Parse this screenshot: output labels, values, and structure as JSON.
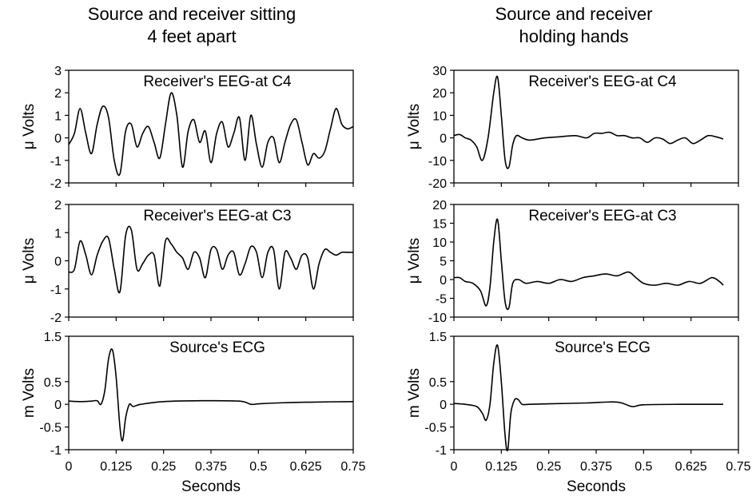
{
  "columns": [
    {
      "title": "Source and receiver sitting\n4 feet apart"
    },
    {
      "title": "Source and receiver\nholding hands"
    }
  ],
  "chart_data": [
    {
      "type": "line",
      "column": 0,
      "row": 0,
      "annotation": "Receiver's EEG-at C4",
      "ylabel": "μ Volts",
      "xlim": [
        0,
        0.75
      ],
      "ylim": [
        -2,
        3
      ],
      "yticks": [
        -2,
        -1,
        0,
        1,
        2,
        3
      ],
      "ytick_labels": [
        "-2",
        "-1",
        "0",
        "1",
        "2",
        "3"
      ],
      "xticks": [
        0,
        0.125,
        0.25,
        0.375,
        0.5,
        0.625,
        0.75
      ],
      "xtick_labels": [],
      "series": [
        {
          "x": [
            0,
            0.015,
            0.03,
            0.045,
            0.06,
            0.075,
            0.09,
            0.105,
            0.12,
            0.135,
            0.15,
            0.165,
            0.18,
            0.195,
            0.21,
            0.225,
            0.24,
            0.255,
            0.27,
            0.285,
            0.3,
            0.315,
            0.33,
            0.345,
            0.36,
            0.375,
            0.39,
            0.405,
            0.42,
            0.435,
            0.45,
            0.465,
            0.48,
            0.495,
            0.51,
            0.525,
            0.54,
            0.555,
            0.57,
            0.585,
            0.6,
            0.615,
            0.63,
            0.645,
            0.66,
            0.675,
            0.69,
            0.705,
            0.72,
            0.735,
            0.75
          ],
          "values": [
            -0.3,
            0.2,
            1.3,
            0.2,
            -0.7,
            0.6,
            1.4,
            0.9,
            -1.0,
            -1.6,
            0.3,
            0.6,
            -0.4,
            0.2,
            0.5,
            -0.2,
            -0.9,
            0.6,
            2.0,
            1.0,
            -1.3,
            0.3,
            0.8,
            -0.2,
            0.3,
            -1.1,
            0.2,
            0.7,
            -0.4,
            0.2,
            0.9,
            -1.0,
            1.0,
            -0.3,
            -1.3,
            -0.2,
            0.0,
            -1.1,
            -0.2,
            0.6,
            0.8,
            -0.2,
            -1.2,
            -0.7,
            -0.9,
            -0.6,
            0.4,
            1.3,
            0.6,
            0.4,
            0.5
          ]
        }
      ]
    },
    {
      "type": "line",
      "column": 0,
      "row": 1,
      "annotation": "Receiver's EEG-at C3",
      "ylabel": "μ Volts",
      "xlim": [
        0,
        0.75
      ],
      "ylim": [
        -2,
        2
      ],
      "yticks": [
        -2,
        -1,
        0,
        1,
        2
      ],
      "ytick_labels": [
        "-2",
        "-1",
        "0",
        "1",
        "2"
      ],
      "xticks": [
        0,
        0.125,
        0.25,
        0.375,
        0.5,
        0.625,
        0.75
      ],
      "xtick_labels": [],
      "series": [
        {
          "x": [
            0,
            0.015,
            0.03,
            0.045,
            0.06,
            0.075,
            0.09,
            0.105,
            0.12,
            0.135,
            0.15,
            0.165,
            0.18,
            0.195,
            0.21,
            0.225,
            0.24,
            0.255,
            0.27,
            0.285,
            0.3,
            0.315,
            0.33,
            0.345,
            0.36,
            0.375,
            0.39,
            0.405,
            0.42,
            0.435,
            0.45,
            0.465,
            0.48,
            0.495,
            0.51,
            0.525,
            0.54,
            0.555,
            0.57,
            0.585,
            0.6,
            0.615,
            0.63,
            0.645,
            0.66,
            0.675,
            0.69,
            0.705,
            0.72,
            0.735,
            0.75
          ],
          "values": [
            -0.4,
            -0.3,
            0.7,
            0.2,
            -0.5,
            0.2,
            0.7,
            0.8,
            -0.3,
            -1.1,
            0.9,
            1.1,
            -0.3,
            -0.1,
            0.2,
            0.2,
            -0.9,
            0.7,
            0.6,
            0.3,
            0.1,
            -0.3,
            0.3,
            0.1,
            -0.6,
            0.4,
            0.4,
            -0.3,
            0.2,
            0.3,
            -0.5,
            -0.1,
            0.5,
            0.3,
            -0.6,
            0.3,
            0.4,
            -1.0,
            0.3,
            0.1,
            -0.3,
            0.2,
            0.1,
            -1.0,
            -0.1,
            0.4,
            0.3,
            0.2,
            0.3,
            0.3,
            0.3
          ]
        }
      ]
    },
    {
      "type": "line",
      "column": 0,
      "row": 2,
      "annotation": "Source's ECG",
      "ylabel": "m Volts",
      "xlim": [
        0,
        0.75
      ],
      "ylim": [
        -1,
        1.5
      ],
      "yticks": [
        -1,
        -0.5,
        0,
        0.5,
        1.5
      ],
      "ytick_labels": [
        "-1",
        "-0.5",
        "0",
        "0.5",
        "1.5"
      ],
      "xticks": [
        0,
        0.125,
        0.25,
        0.375,
        0.5,
        0.625,
        0.75
      ],
      "xtick_labels": [
        "0",
        "0.125",
        "0.25",
        "0.375",
        "0.5",
        "0.625",
        "0.75"
      ],
      "xlabel": "Seconds",
      "series": [
        {
          "x": [
            0,
            0.03,
            0.06,
            0.075,
            0.085,
            0.095,
            0.105,
            0.115,
            0.125,
            0.135,
            0.142,
            0.15,
            0.16,
            0.17,
            0.19,
            0.25,
            0.35,
            0.45,
            0.48,
            0.5,
            0.55,
            0.65,
            0.75
          ],
          "values": [
            0.07,
            0.06,
            0.07,
            0.08,
            0.0,
            0.3,
            1.0,
            1.2,
            0.6,
            -0.5,
            -0.8,
            -0.3,
            0.0,
            -0.05,
            0.0,
            0.06,
            0.08,
            0.07,
            0.0,
            0.01,
            0.03,
            0.05,
            0.06
          ]
        }
      ]
    },
    {
      "type": "line",
      "column": 1,
      "row": 0,
      "annotation": "Receiver's EEG-at C4",
      "ylabel": "μ Volts",
      "xlim": [
        0,
        0.75
      ],
      "ylim": [
        -20,
        30
      ],
      "yticks": [
        -20,
        -10,
        0,
        10,
        20,
        30
      ],
      "ytick_labels": [
        "-20",
        "-10",
        "0",
        "10",
        "20",
        "30"
      ],
      "xticks": [
        0,
        0.125,
        0.25,
        0.375,
        0.5,
        0.625,
        0.75
      ],
      "xtick_labels": [],
      "series": [
        {
          "x": [
            0,
            0.015,
            0.03,
            0.045,
            0.06,
            0.075,
            0.09,
            0.105,
            0.115,
            0.125,
            0.135,
            0.145,
            0.155,
            0.165,
            0.18,
            0.2,
            0.24,
            0.28,
            0.32,
            0.35,
            0.37,
            0.39,
            0.41,
            0.43,
            0.45,
            0.47,
            0.49,
            0.51,
            0.53,
            0.55,
            0.57,
            0.59,
            0.61,
            0.63,
            0.65,
            0.67,
            0.69,
            0.71
          ],
          "values": [
            1,
            1.5,
            0,
            -1,
            -4,
            -10,
            0,
            20,
            27,
            10,
            -10,
            -13,
            -3,
            1,
            0,
            -1,
            0,
            0.5,
            1,
            0,
            2,
            2,
            2.5,
            1,
            1,
            0,
            0,
            -2,
            0,
            -0.5,
            -2.5,
            -1,
            0,
            -2.5,
            -1,
            1,
            0.5,
            -0.5
          ]
        }
      ]
    },
    {
      "type": "line",
      "column": 1,
      "row": 1,
      "annotation": "Receiver's EEG-at C3",
      "ylabel": "μ Volts",
      "xlim": [
        0,
        0.75
      ],
      "ylim": [
        -10,
        20
      ],
      "yticks": [
        -10,
        -5,
        0,
        5,
        10,
        15,
        20
      ],
      "ytick_labels": [
        "-10",
        "-5",
        "0",
        "5",
        "10",
        "15",
        "20"
      ],
      "xticks": [
        0,
        0.125,
        0.25,
        0.375,
        0.5,
        0.625,
        0.75
      ],
      "xtick_labels": [],
      "series": [
        {
          "x": [
            0,
            0.015,
            0.03,
            0.05,
            0.07,
            0.085,
            0.095,
            0.105,
            0.115,
            0.125,
            0.135,
            0.145,
            0.155,
            0.17,
            0.19,
            0.22,
            0.25,
            0.28,
            0.31,
            0.34,
            0.37,
            0.4,
            0.43,
            0.46,
            0.48,
            0.5,
            0.53,
            0.56,
            0.59,
            0.62,
            0.65,
            0.68,
            0.7,
            0.71
          ],
          "values": [
            0.5,
            0.5,
            -0.5,
            -1,
            -3,
            -7,
            -2,
            10,
            16,
            5,
            -6,
            -7.5,
            -1,
            0,
            -1,
            -0.5,
            -1,
            0,
            -0.5,
            0.5,
            1,
            1.5,
            1,
            2,
            0.5,
            -1,
            -1.5,
            -1,
            -1.5,
            -0.5,
            -1,
            0.5,
            -0.5,
            -1.5
          ]
        }
      ]
    },
    {
      "type": "line",
      "column": 1,
      "row": 2,
      "annotation": "Source's ECG",
      "ylabel": "m Volts",
      "xlim": [
        0,
        0.75
      ],
      "ylim": [
        -1,
        1.5
      ],
      "yticks": [
        -1,
        -0.5,
        0,
        0.5,
        1.5
      ],
      "ytick_labels": [
        "-1",
        "-0.5",
        "0",
        "0.5",
        "1.5"
      ],
      "xticks": [
        0,
        0.125,
        0.25,
        0.375,
        0.5,
        0.625,
        0.75
      ],
      "xtick_labels": [
        "0",
        "0.125",
        "0.25",
        "0.375",
        "0.5",
        "0.625",
        "0.75"
      ],
      "xlabel": "Seconds",
      "series": [
        {
          "x": [
            0,
            0.03,
            0.06,
            0.075,
            0.085,
            0.095,
            0.105,
            0.115,
            0.125,
            0.135,
            0.142,
            0.15,
            0.16,
            0.17,
            0.18,
            0.2,
            0.25,
            0.35,
            0.43,
            0.47,
            0.5,
            0.6,
            0.71
          ],
          "values": [
            0.02,
            0.0,
            -0.05,
            -0.2,
            -0.35,
            0.0,
            0.9,
            1.3,
            0.5,
            -0.7,
            -1.0,
            -0.2,
            0.1,
            0.1,
            0.0,
            0.0,
            0.01,
            0.03,
            0.05,
            -0.05,
            -0.01,
            0.0,
            0.0
          ]
        }
      ]
    }
  ]
}
